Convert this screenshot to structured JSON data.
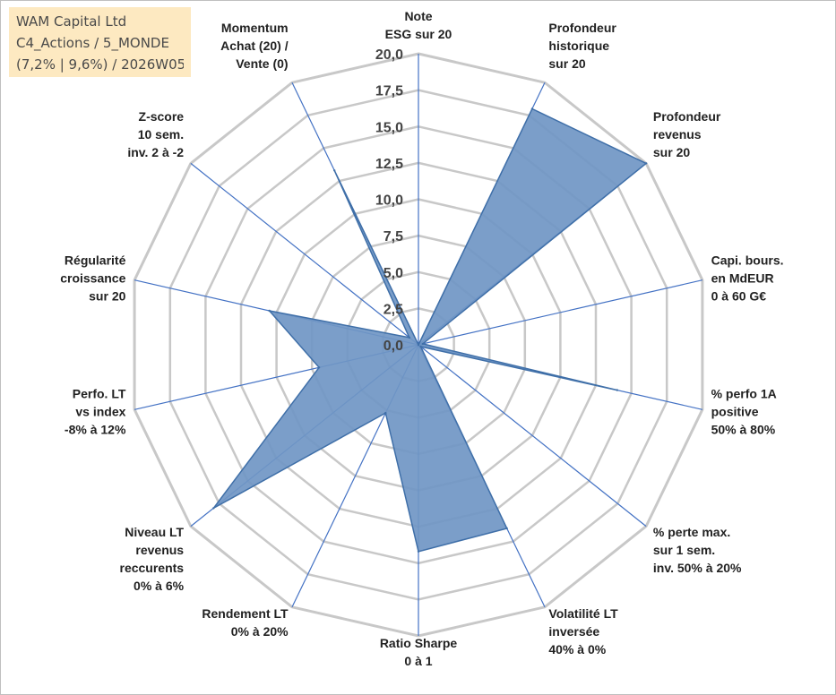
{
  "info_box": {
    "line1": "WAM Capital Ltd",
    "line2": "C4_Actions / 5_MONDE",
    "line3": "(7,2% | 9,6%) / 2026W05"
  },
  "chart_data": {
    "type": "radar",
    "title": "",
    "rlim": [
      0,
      20
    ],
    "ticks": [
      "0,0",
      "2,5",
      "5,0",
      "7,5",
      "10,0",
      "12,5",
      "15,0",
      "17,5",
      "20,0"
    ],
    "grid": true,
    "axes": [
      [
        "Note",
        "ESG sur 20"
      ],
      [
        "Profondeur",
        "historique",
        "sur 20"
      ],
      [
        "Profondeur",
        "revenus",
        "sur 20"
      ],
      [
        "Capi. bours.",
        "en MdEUR",
        "0 à 60 G€"
      ],
      [
        "% perfo 1A",
        "positive",
        "50% à 80%"
      ],
      [
        "% perte max.",
        "sur 1 sem.",
        "inv. 50% à 20%"
      ],
      [
        "Volatilité LT",
        "inversée",
        "40% à 0%"
      ],
      [
        "Ratio Sharpe",
        "0 à 1"
      ],
      [
        "Rendement LT",
        "0% à 20%"
      ],
      [
        "Niveau LT",
        "revenus",
        "reccurents",
        "0% à 6%"
      ],
      [
        "Perfo. LT",
        "vs index",
        "-8% à 12%"
      ],
      [
        "Régularité",
        "croissance",
        "sur 20"
      ],
      [
        "Z-score",
        "10 sem.",
        "inv. 2 à -2"
      ],
      [
        "Momentum",
        "Achat (20) /",
        "Vente (0)"
      ]
    ],
    "series": [
      {
        "values": [
          0,
          18,
          20,
          0.3,
          14,
          0.2,
          14,
          14.2,
          5.2,
          18,
          7,
          10.5,
          0.8,
          13.3
        ]
      }
    ],
    "colors": {
      "fill": "#7096c4",
      "stroke": "#3f6fa8",
      "spoke": "#4472c4",
      "grid": "#c8c8c8"
    }
  }
}
